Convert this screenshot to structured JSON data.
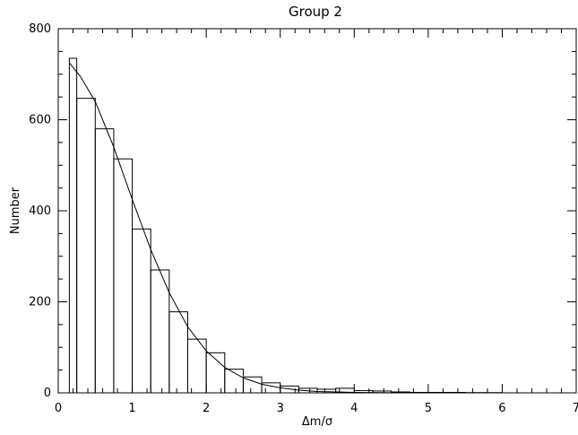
{
  "chart_data": {
    "type": "histogram",
    "title": "Group 2",
    "xlabel": "Δm/σ",
    "ylabel": "Number",
    "xlim": [
      0,
      7
    ],
    "ylim": [
      0,
      800
    ],
    "x_ticks": [
      "0",
      "1",
      "2",
      "3",
      "4",
      "5",
      "6",
      "7"
    ],
    "y_ticks": [
      "0",
      "200",
      "400",
      "600",
      "800"
    ],
    "grid": false,
    "bin_edges": [
      0.15,
      0.25,
      0.5,
      0.75,
      1.0,
      1.25,
      1.5,
      1.75,
      2.0,
      2.25,
      2.5,
      2.75,
      3.0,
      3.25,
      3.5,
      3.75,
      4.0,
      4.25,
      4.5,
      4.75,
      5.0,
      5.25,
      5.5,
      5.75,
      6.0
    ],
    "bin_counts": [
      735,
      647,
      580,
      514,
      360,
      270,
      178,
      118,
      88,
      52,
      35,
      22,
      15,
      10,
      8,
      10,
      5,
      4,
      2,
      1,
      1,
      1,
      0.5,
      0.5
    ],
    "fit_curve": {
      "x": [
        0.15,
        0.3,
        0.5,
        0.6,
        0.75,
        1.0,
        1.25,
        1.5,
        1.75,
        2.0,
        2.25,
        2.5,
        2.75,
        3.0,
        3.25,
        3.5,
        4.0,
        4.5,
        5.0,
        5.5,
        6.0
      ],
      "y": [
        725,
        695,
        640,
        600,
        540,
        425,
        315,
        220,
        145,
        92,
        56,
        33,
        19,
        11,
        6,
        3,
        1,
        0.3,
        0.1,
        0,
        0
      ]
    },
    "color": "#000000"
  }
}
